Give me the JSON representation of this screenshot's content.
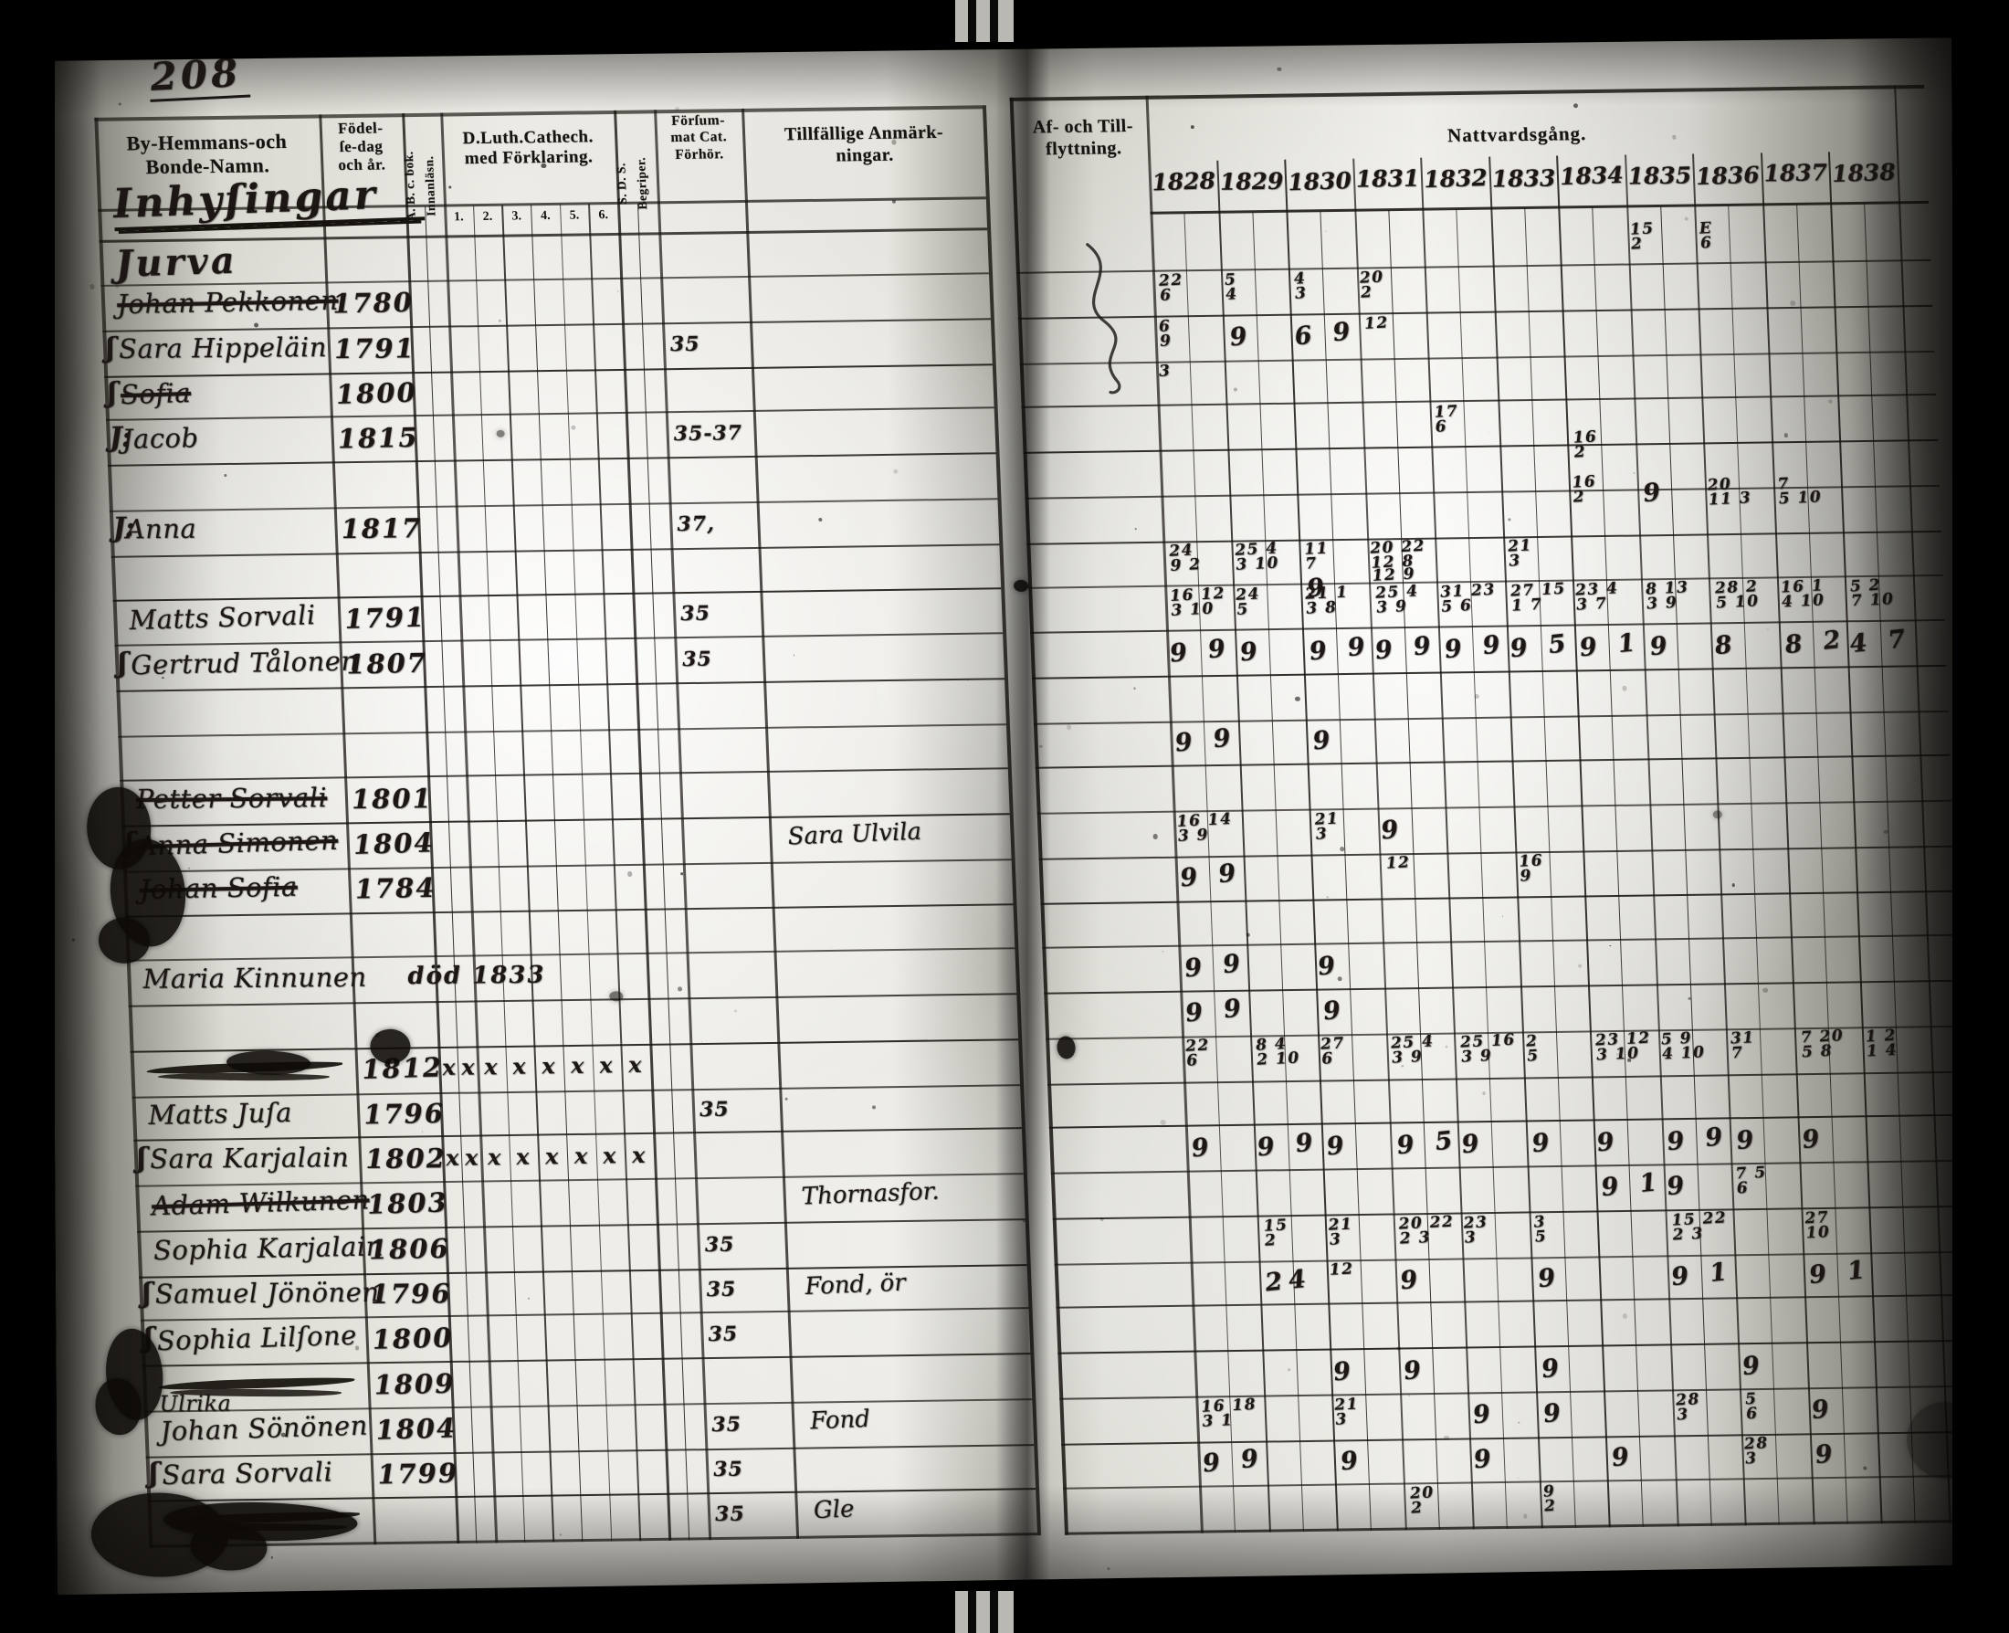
{
  "page_number": "208",
  "left_page": {
    "headers": {
      "col_name": "By-Hemmans-och\nBonde-Namn.",
      "col_birth": "Födel-\nſe-dag\noch år.",
      "col_abc_top": "A. B. c. bok.",
      "col_abc_bottom": "Innanläsn.",
      "col_cat": "D.Luth.Cathech.\nmed Förklaring.",
      "col_cat_subs": [
        "1.",
        "2.",
        "3.",
        "4.",
        "5.",
        "6."
      ],
      "col_sds_top": "S. D. S.",
      "col_sds_bottom": "Begriper.",
      "col_missed": "Förſum-\nmat Cat.\nFörhör.",
      "col_notes": "Tillfällige Anmärk-\nningar."
    },
    "section_title": "Inhyſingar",
    "rows": [
      {
        "r": 0,
        "name": "Jurva",
        "heading": true
      },
      {
        "r": 1,
        "name": "Johan Pekkonen",
        "struck": true,
        "year": "1780"
      },
      {
        "r": 2,
        "flourish": "ʃ",
        "name": "Sara Hippeläin",
        "year": "1791",
        "missed": "35"
      },
      {
        "r": 3,
        "flourish": "ʃ",
        "name": "Sofia",
        "struck": true,
        "year": "1800"
      },
      {
        "r": 4,
        "flourish": "J:",
        "name": "Jacob",
        "year": "1815",
        "missed": "35-37"
      },
      {
        "r": 6,
        "flourish": "J:",
        "name": "Anna",
        "year": "1817",
        "missed": "37,"
      },
      {
        "r": 8,
        "name": "Matts Sorvali",
        "year": "1791",
        "missed": "35"
      },
      {
        "r": 9,
        "flourish": "ʃ",
        "name": "Gertrud Tålonen",
        "year": "1807",
        "missed": "35"
      },
      {
        "r": 12,
        "name": "Petter Sorvali",
        "struck": true,
        "year": "1801"
      },
      {
        "r": 13,
        "flourish": "ʃ",
        "name": "Anna Simonen",
        "struck": true,
        "year": "1804",
        "note": "Sara Ulvila"
      },
      {
        "r": 14,
        "name": "Johan Sofia",
        "struck": true,
        "year": "1784"
      },
      {
        "r": 16,
        "name": "Maria Kinnunen",
        "year": "död 1833"
      },
      {
        "r": 18,
        "name": "",
        "scribble": true,
        "year": "1812",
        "xmarks": true
      },
      {
        "r": 19,
        "name": "Matts Juſa",
        "year": "1796",
        "missed": "35"
      },
      {
        "r": 20,
        "flourish": "ʃ",
        "name": "Sara Karjalain",
        "year": "1802",
        "xmarks": true
      },
      {
        "r": 21,
        "name": "Adam Wilkunen",
        "struck": true,
        "year": "1803",
        "note": "Thornasfor."
      },
      {
        "r": 22,
        "name": "Sophia Karjalain",
        "year": "1806",
        "missed": "35"
      },
      {
        "r": 23,
        "flourish": "ʃ",
        "name": "Samuel Jönönen",
        "year": "1796",
        "missed": "35",
        "note": "Fond, ör"
      },
      {
        "r": 24,
        "flourish": "ʃ",
        "name": "Sophia Lilſone",
        "year": "1800",
        "missed": "35"
      },
      {
        "r": 25,
        "name": "",
        "scribble": true,
        "year": "1809"
      },
      {
        "r": 25.5,
        "name": "Ulrika",
        "small": true
      },
      {
        "r": 26,
        "name": "Johan Sönönen",
        "year": "1804",
        "missed": "35",
        "note": "Fond"
      },
      {
        "r": 27,
        "flourish": "ʃ",
        "name": "Sara Sorvali",
        "year": "1799",
        "missed": "35"
      },
      {
        "r": 28,
        "name": "",
        "scribble": true,
        "missed": "35",
        "note": "Gle"
      }
    ]
  },
  "right_page": {
    "headers": {
      "col_moving": "Af- och Till-\nflyttning.",
      "communion_title": "Nattvardsgång."
    },
    "years": [
      "1828",
      "1829",
      "1830",
      "1831",
      "1832",
      "1833",
      "1834",
      "1835",
      "1836",
      "1837",
      "1838"
    ],
    "marks": [
      {
        "r": 0,
        "y": 7,
        "t": "15|2"
      },
      {
        "r": 0,
        "y": 8,
        "t": "E|6"
      },
      {
        "r": 1,
        "y": 0,
        "t": "22|6"
      },
      {
        "r": 1,
        "y": 1,
        "t": "5|4"
      },
      {
        "r": 1,
        "y": 2,
        "t": "4|3"
      },
      {
        "r": 1,
        "y": 3,
        "t": "20|2"
      },
      {
        "r": 2,
        "y": 0,
        "t": "6|9"
      },
      {
        "r": 2,
        "y": 1,
        "t": "9",
        "f": 1
      },
      {
        "r": 2,
        "y": 2,
        "t": "6 9",
        "f": 1
      },
      {
        "r": 2,
        "y": 3,
        "t": "12"
      },
      {
        "r": 3,
        "y": 0,
        "t": "3"
      },
      {
        "r": 4,
        "y": 4,
        "t": "17|6"
      },
      {
        "r": 4.6,
        "y": 6,
        "t": "16|2"
      },
      {
        "r": 5.6,
        "y": 6,
        "t": "16|2"
      },
      {
        "r": 5.6,
        "y": 7,
        "t": "9",
        "f": 1
      },
      {
        "r": 5.7,
        "y": 8,
        "t": "20|11 3"
      },
      {
        "r": 5.7,
        "y": 9,
        "t": "7|5 10"
      },
      {
        "r": 7,
        "y": 0,
        "t": "24|9 2"
      },
      {
        "r": 7,
        "y": 1,
        "t": "25 4|3 10"
      },
      {
        "r": 7,
        "y": 2,
        "t": "11|7"
      },
      {
        "r": 7,
        "y": 3,
        "t": "20 22|12 8"
      },
      {
        "r": 7,
        "y": 5,
        "t": "21|3"
      },
      {
        "r": 7.6,
        "y": 2,
        "t": "9",
        "f": 1
      },
      {
        "r": 7.6,
        "y": 3,
        "t": "12 9"
      },
      {
        "r": 8,
        "y": 0,
        "t": "16 12|3 10"
      },
      {
        "r": 8,
        "y": 1,
        "t": "24|5"
      },
      {
        "r": 8,
        "y": 2,
        "t": "21 1|3 8"
      },
      {
        "r": 8,
        "y": 3,
        "t": "25 4|3 9"
      },
      {
        "r": 8,
        "y": 4,
        "t": "31 23|5 6"
      },
      {
        "r": 8,
        "y": 5,
        "t": "27 15|1 7"
      },
      {
        "r": 8,
        "y": 6,
        "t": "23 4|3 7"
      },
      {
        "r": 8,
        "y": 7,
        "t": "8 13|3 9"
      },
      {
        "r": 8,
        "y": 8,
        "t": "28 2|5 10"
      },
      {
        "r": 8,
        "y": 9,
        "t": "16 1|4 10"
      },
      {
        "r": 8,
        "y": 10,
        "t": "5 2|7 10"
      },
      {
        "r": 9,
        "y": 0,
        "t": "9 9",
        "f": 1
      },
      {
        "r": 9,
        "y": 1,
        "t": "9",
        "f": 1
      },
      {
        "r": 9,
        "y": 2,
        "t": "9 9",
        "f": 1
      },
      {
        "r": 9,
        "y": 3,
        "t": "9 9",
        "f": 1
      },
      {
        "r": 9,
        "y": 4,
        "t": "9 9",
        "f": 1
      },
      {
        "r": 9,
        "y": 5,
        "t": "9 5",
        "f": 1
      },
      {
        "r": 9,
        "y": 6,
        "t": "9 1",
        "f": 1
      },
      {
        "r": 9,
        "y": 7,
        "t": "9",
        "f": 1
      },
      {
        "r": 9,
        "y": 8,
        "t": "8",
        "f": 1
      },
      {
        "r": 9,
        "y": 9,
        "t": "8 2",
        "f": 1
      },
      {
        "r": 9,
        "y": 10,
        "t": "4 7",
        "f": 1
      },
      {
        "r": 11,
        "y": 0,
        "t": "9 9",
        "f": 1
      },
      {
        "r": 11,
        "y": 2,
        "t": "9",
        "f": 1
      },
      {
        "r": 13,
        "y": 0,
        "t": "16 14|3 9"
      },
      {
        "r": 13,
        "y": 2,
        "t": "21|3"
      },
      {
        "r": 13,
        "y": 3,
        "t": "9",
        "f": 1
      },
      {
        "r": 14,
        "y": 0,
        "t": "9 9",
        "f": 1
      },
      {
        "r": 14,
        "y": 3,
        "t": "12"
      },
      {
        "r": 14,
        "y": 5,
        "t": "16|9"
      },
      {
        "r": 16,
        "y": 0,
        "t": "9 9",
        "f": 1
      },
      {
        "r": 16,
        "y": 2,
        "t": "9",
        "f": 1
      },
      {
        "r": 17,
        "y": 0,
        "t": "9 9",
        "f": 1
      },
      {
        "r": 17,
        "y": 2,
        "t": "9",
        "f": 1
      },
      {
        "r": 18,
        "y": 0,
        "t": "22|6"
      },
      {
        "r": 18,
        "y": 1,
        "t": "8 4|2 10"
      },
      {
        "r": 18,
        "y": 2,
        "t": "27|6"
      },
      {
        "r": 18,
        "y": 3,
        "t": "25 4|3 9"
      },
      {
        "r": 18,
        "y": 4,
        "t": "25 16|3 9"
      },
      {
        "r": 18,
        "y": 5,
        "t": "2|5"
      },
      {
        "r": 18,
        "y": 6,
        "t": "23 12|3 10"
      },
      {
        "r": 18,
        "y": 7,
        "t": "5 9|4 10"
      },
      {
        "r": 18,
        "y": 8,
        "t": "31|7"
      },
      {
        "r": 18,
        "y": 9,
        "t": "7 20|5 8"
      },
      {
        "r": 18,
        "y": 10,
        "t": "1 2|1 4"
      },
      {
        "r": 20,
        "y": 0,
        "t": "9",
        "f": 1
      },
      {
        "r": 20,
        "y": 1,
        "t": "9 9",
        "f": 1
      },
      {
        "r": 20,
        "y": 2,
        "t": "9",
        "f": 1
      },
      {
        "r": 20,
        "y": 3,
        "t": "9 5",
        "f": 1
      },
      {
        "r": 20,
        "y": 4,
        "t": "9",
        "f": 1
      },
      {
        "r": 20,
        "y": 5,
        "t": "9",
        "f": 1
      },
      {
        "r": 20,
        "y": 6,
        "t": "9",
        "f": 1
      },
      {
        "r": 20,
        "y": 7,
        "t": "9 9",
        "f": 1
      },
      {
        "r": 20,
        "y": 8,
        "t": "9",
        "f": 1
      },
      {
        "r": 20,
        "y": 9,
        "t": "9",
        "f": 1
      },
      {
        "r": 21,
        "y": 6,
        "t": "9 1",
        "f": 1
      },
      {
        "r": 21,
        "y": 7,
        "t": "9",
        "f": 1
      },
      {
        "r": 21,
        "y": 8,
        "t": "7 5|6"
      },
      {
        "r": 22,
        "y": 1,
        "t": "15|2"
      },
      {
        "r": 22,
        "y": 2,
        "t": "21|3"
      },
      {
        "r": 22,
        "y": 3,
        "t": "20 22|2 3"
      },
      {
        "r": 22,
        "y": 4,
        "t": "23|3"
      },
      {
        "r": 22,
        "y": 5,
        "t": "3|5"
      },
      {
        "r": 22,
        "y": 7,
        "t": "15 22|2 3"
      },
      {
        "r": 22,
        "y": 9,
        "t": "27|10"
      },
      {
        "r": 23,
        "y": 1,
        "t": "24",
        "f": 1
      },
      {
        "r": 23,
        "y": 2,
        "t": "12"
      },
      {
        "r": 23,
        "y": 3,
        "t": "9",
        "f": 1
      },
      {
        "r": 23,
        "y": 5,
        "t": "9",
        "f": 1
      },
      {
        "r": 23,
        "y": 7,
        "t": "9 1",
        "f": 1
      },
      {
        "r": 23,
        "y": 9,
        "t": "9 1",
        "f": 1
      },
      {
        "r": 25,
        "y": 2,
        "t": "9",
        "f": 1
      },
      {
        "r": 25,
        "y": 3,
        "t": "9",
        "f": 1
      },
      {
        "r": 25,
        "y": 5,
        "t": "9",
        "f": 1
      },
      {
        "r": 25,
        "y": 8,
        "t": "9",
        "f": 1
      },
      {
        "r": 26,
        "y": 0,
        "t": "16 18|3 1"
      },
      {
        "r": 26,
        "y": 2,
        "t": "21|3"
      },
      {
        "r": 26,
        "y": 4,
        "t": "9",
        "f": 1
      },
      {
        "r": 26,
        "y": 5,
        "t": "9",
        "f": 1
      },
      {
        "r": 26,
        "y": 7,
        "t": "28|3"
      },
      {
        "r": 26,
        "y": 8,
        "t": "5|6"
      },
      {
        "r": 26,
        "y": 9,
        "t": "9",
        "f": 1
      },
      {
        "r": 27,
        "y": 0,
        "t": "9 9",
        "f": 1
      },
      {
        "r": 27,
        "y": 2,
        "t": "9",
        "f": 1
      },
      {
        "r": 27,
        "y": 4,
        "t": "9",
        "f": 1
      },
      {
        "r": 27,
        "y": 6,
        "t": "9",
        "f": 1
      },
      {
        "r": 27,
        "y": 8,
        "t": "28|3"
      },
      {
        "r": 27,
        "y": 9,
        "t": "9",
        "f": 1
      },
      {
        "r": 28,
        "y": 3,
        "t": "20|2"
      },
      {
        "r": 28,
        "y": 5,
        "t": "9|2"
      }
    ]
  }
}
